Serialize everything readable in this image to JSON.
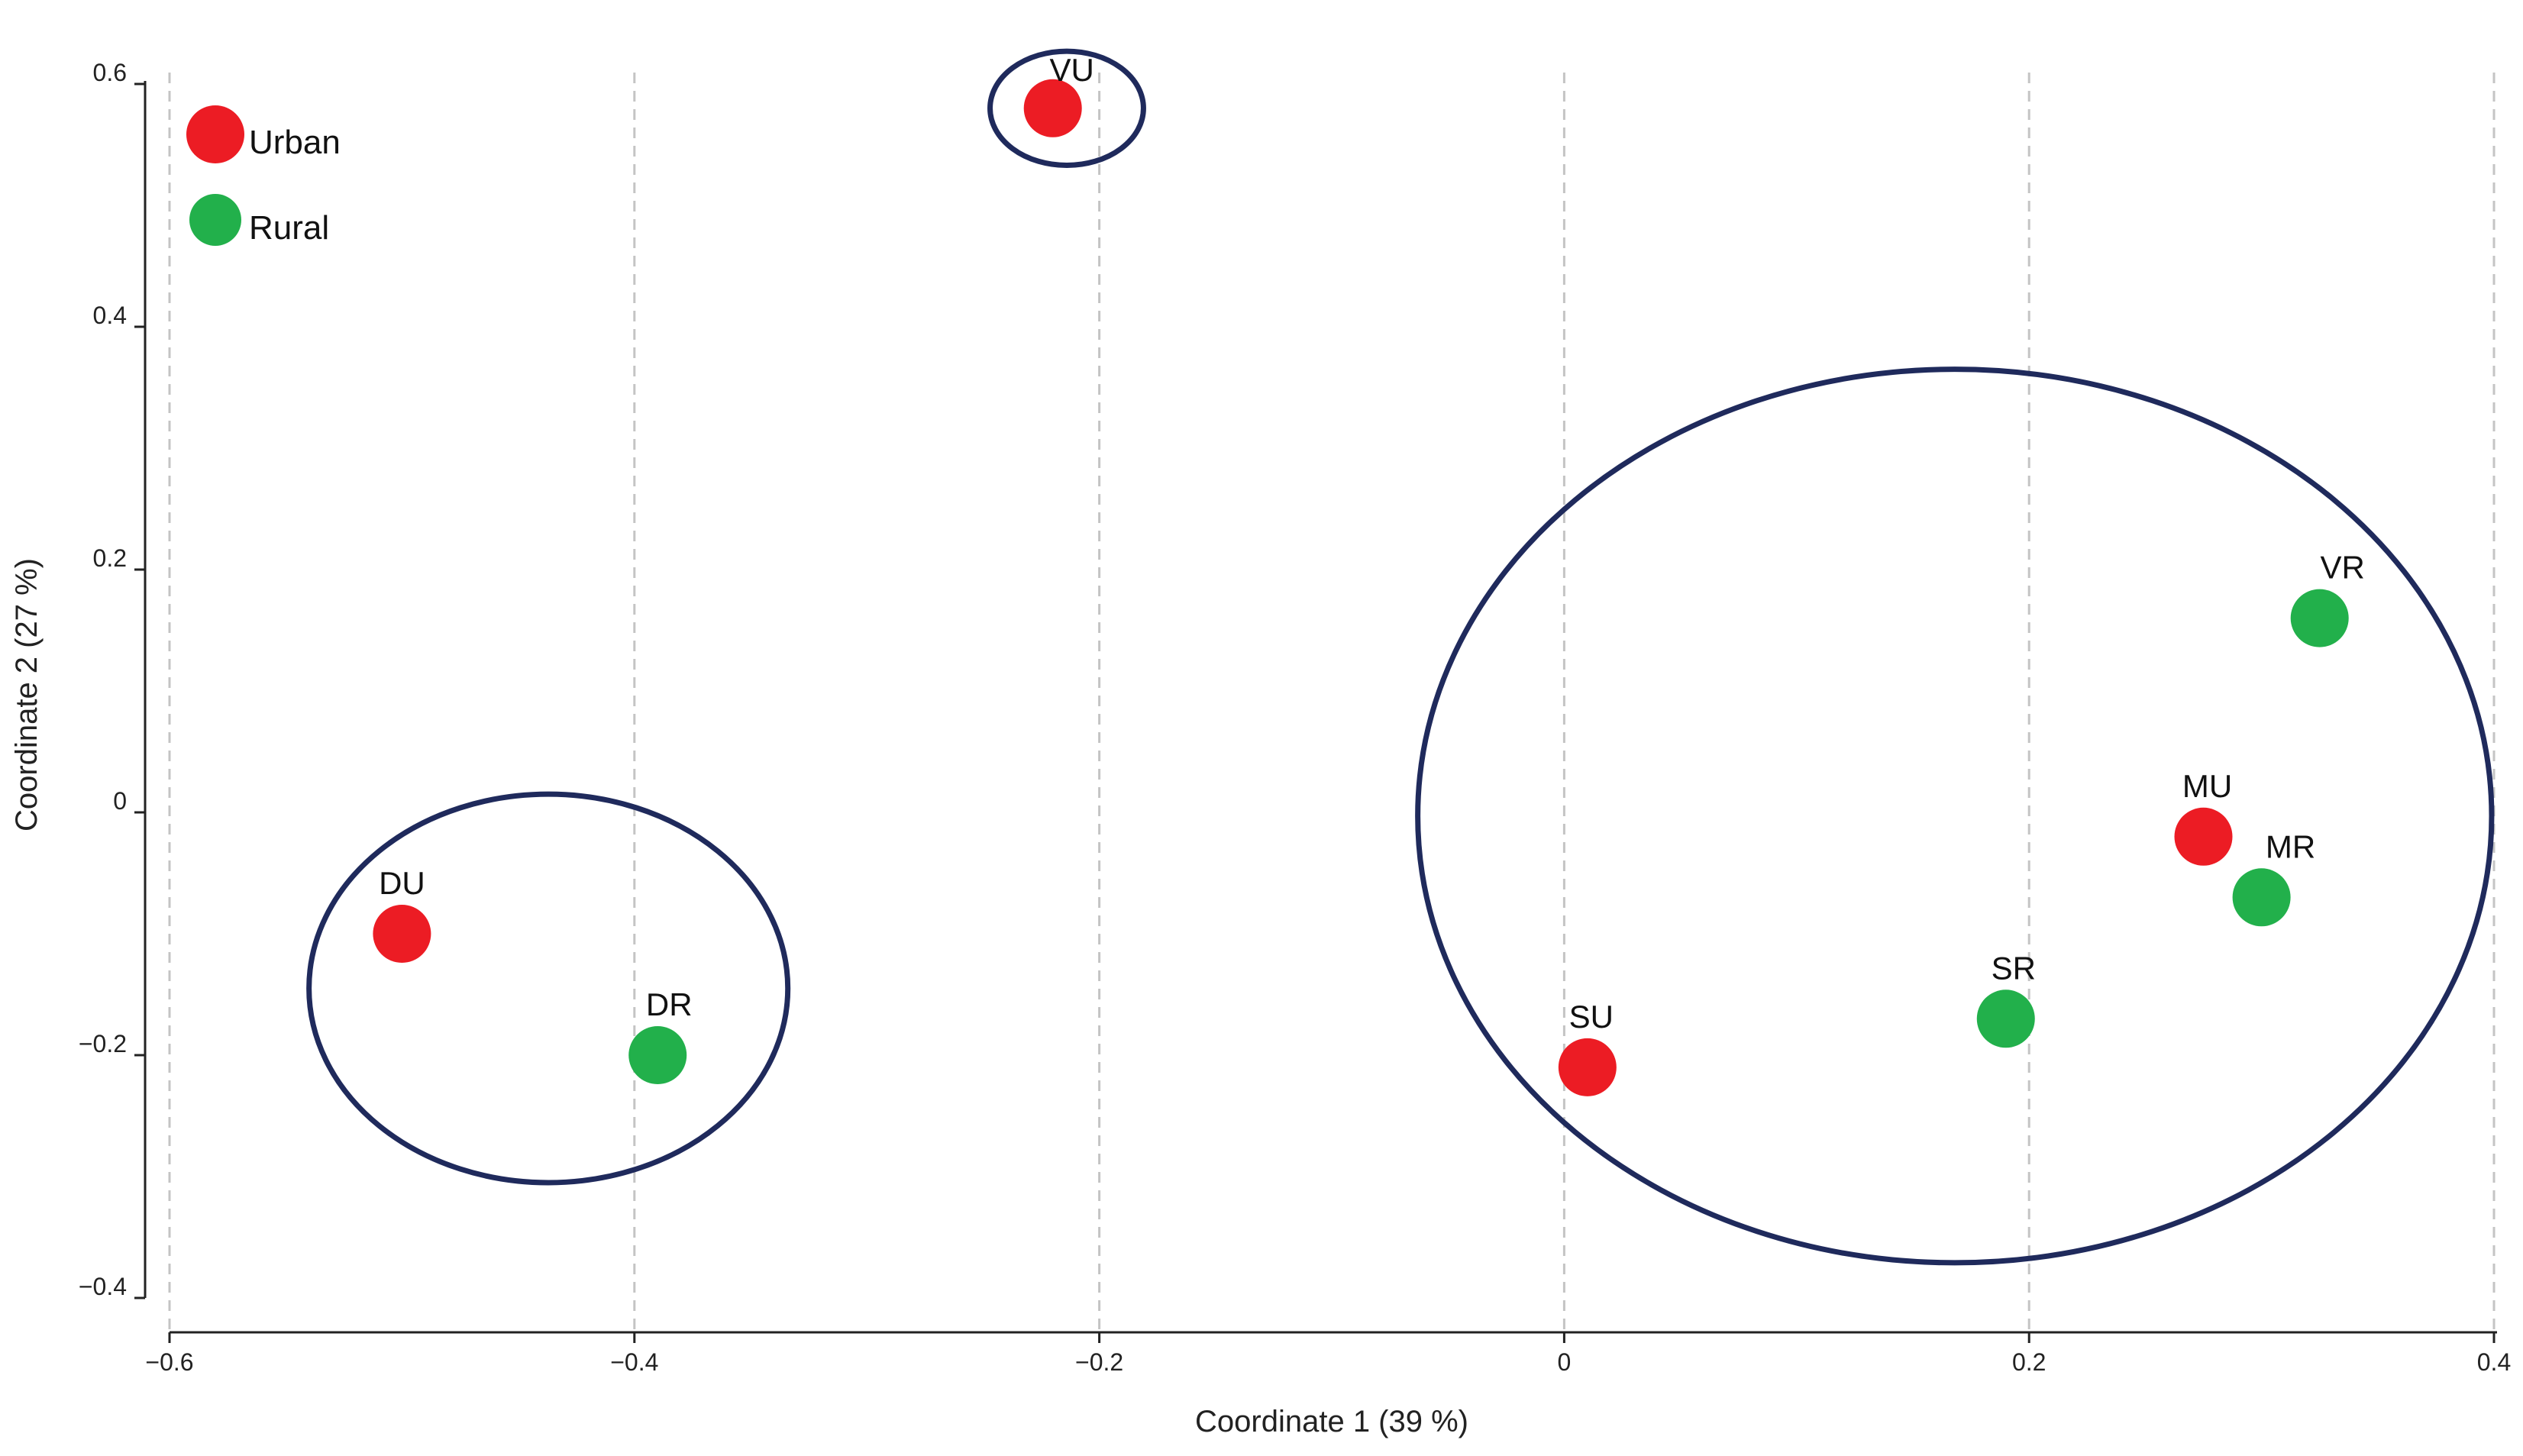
{
  "chart_data": {
    "type": "scatter",
    "xlabel": "Coordinate 1 (39 %)",
    "ylabel": "Coordinate 2 (27 %)",
    "xlim": [
      -0.6,
      0.4
    ],
    "ylim": [
      -0.4,
      0.6
    ],
    "xticks": [
      -0.6,
      -0.4,
      -0.2,
      0,
      0.2,
      0.4
    ],
    "yticks": [
      -0.4,
      -0.2,
      0,
      0.2,
      0.4,
      0.6
    ],
    "xtick_labels": [
      "−0.6",
      "−0.4",
      "−0.2",
      "0",
      "0.2",
      "0.4"
    ],
    "ytick_labels": [
      "−0.4",
      "−0.2",
      "0",
      "0.2",
      "0.4",
      "0.6"
    ],
    "grid": "vertical dashed",
    "legend_position": "top-left",
    "series": [
      {
        "name": "Urban",
        "color": "#ec1c24",
        "points": [
          {
            "label": "VU",
            "x": -0.22,
            "y": 0.58
          },
          {
            "label": "DU",
            "x": -0.5,
            "y": -0.1
          },
          {
            "label": "SU",
            "x": 0.01,
            "y": -0.21
          },
          {
            "label": "MU",
            "x": 0.275,
            "y": -0.02
          }
        ]
      },
      {
        "name": "Rural",
        "color": "#22b04b",
        "points": [
          {
            "label": "DR",
            "x": -0.39,
            "y": -0.2
          },
          {
            "label": "SR",
            "x": 0.19,
            "y": -0.17
          },
          {
            "label": "MR",
            "x": 0.3,
            "y": -0.07
          },
          {
            "label": "VR",
            "x": 0.325,
            "y": 0.16
          }
        ]
      }
    ],
    "clusters": [
      {
        "cx": -0.214,
        "cy": 0.58,
        "rx": 0.033,
        "ry": 0.047
      },
      {
        "cx": -0.437,
        "cy": -0.145,
        "rx": 0.103,
        "ry": 0.16
      },
      {
        "cx": 0.168,
        "cy": -0.003,
        "rx": 0.231,
        "ry": 0.368
      }
    ]
  }
}
